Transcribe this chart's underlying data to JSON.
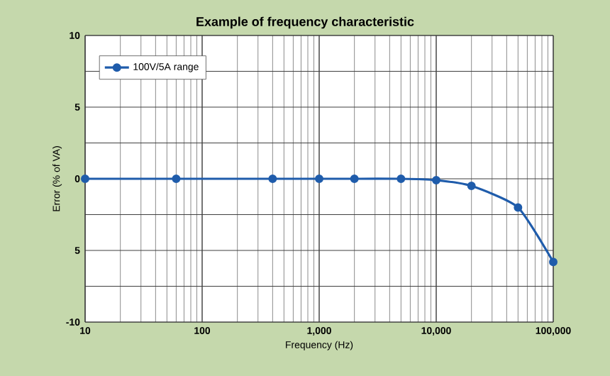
{
  "chart_data": {
    "type": "line",
    "title": "Example of frequency characteristic",
    "xlabel": "Frequency (Hz)",
    "ylabel": "Error (% of VA)",
    "x": [
      10,
      60,
      400,
      1000,
      2000,
      5000,
      10000,
      20000,
      50000,
      100000
    ],
    "series": [
      {
        "name": "100V/5A range",
        "color": "#1f5cab",
        "values": [
          0,
          0,
          0,
          0,
          0,
          0,
          -0.1,
          -0.5,
          -2,
          -5.8
        ]
      }
    ],
    "log": "x",
    "xlim": [
      10,
      100000
    ],
    "xticks": [
      10,
      100,
      {
        "value": 1000,
        "label": "1,000"
      },
      {
        "value": 10000,
        "label": "10,000"
      },
      {
        "value": 100000,
        "label": "100,000"
      }
    ],
    "ylim": [
      -10,
      10
    ],
    "yticks": [
      -10,
      {
        "value": -7.5,
        "label": null
      },
      {
        "value": -5,
        "label": "5"
      },
      {
        "value": -2.5,
        "label": null
      },
      0,
      {
        "value": 2.5,
        "label": null
      },
      5,
      {
        "value": 7.5,
        "label": null
      },
      10
    ],
    "grid": true,
    "legend": "top left",
    "marker": "circle",
    "line_style": "solid"
  }
}
